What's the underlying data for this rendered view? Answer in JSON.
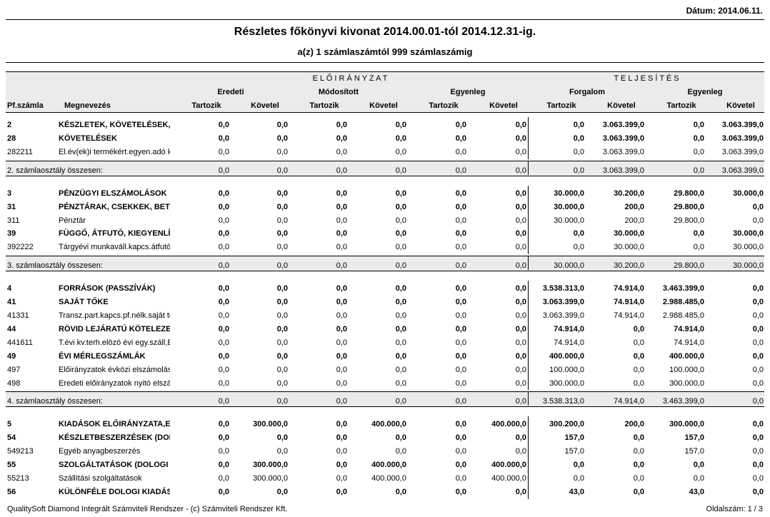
{
  "date": "Dátum: 2014.06.11.",
  "title": "Részletes főkönyvi kivonat 2014.00.01-tól 2014.12.31-ig.",
  "subtitle": "a(z) 1 számlaszámtól 999 számlaszámig",
  "columns": {
    "group1": "E L Ő I R Á N Y Z A T",
    "group2": "T E L J E S Í T É S",
    "subgroups": [
      "Eredeti",
      "Módosított",
      "Egyenleg",
      "Forgalom",
      "Egyenleg"
    ],
    "account": "Pf.számla",
    "name": "Megnevezés",
    "sides": [
      "Tartozik",
      "Követel",
      "Tartozik",
      "Követel",
      "Tartozik",
      "Követel",
      "Tartozik",
      "Követel",
      "Tartozik",
      "Követel"
    ]
  },
  "sections": [
    {
      "rows": [
        {
          "account": "2",
          "name": "KÉSZLETEK, KÖVETELÉSEK, I",
          "values": [
            "0,0",
            "0,0",
            "0,0",
            "0,0",
            "0,0",
            "0,0",
            "0,0",
            "3.063.399,0",
            "0,0",
            "3.063.399,0"
          ]
        },
        {
          "account": "28",
          "name": "KÖVETELÉSEK",
          "values": [
            "0,0",
            "0,0",
            "0,0",
            "0,0",
            "0,0",
            "0,0",
            "0,0",
            "3.063.399,0",
            "0,0",
            "3.063.399,0"
          ]
        },
        {
          "account": "282211",
          "name": "El.év(ek)i termékért.egyen.adó ki",
          "values": [
            "0,0",
            "0,0",
            "0,0",
            "0,0",
            "0,0",
            "0,0",
            "0,0",
            "3.063.399,0",
            "0,0",
            "3.063.399,0"
          ]
        }
      ],
      "total": {
        "label": "2. számlaosztály összesen:",
        "values": [
          "0,0",
          "0,0",
          "0,0",
          "0,0",
          "0,0",
          "0,0",
          "0,0",
          "3.063.399,0",
          "0,0",
          "3.063.399,0"
        ]
      }
    },
    {
      "rows": [
        {
          "account": "3",
          "name": "PÉNZÜGYI ELSZÁMOLÁSOK",
          "values": [
            "0,0",
            "0,0",
            "0,0",
            "0,0",
            "0,0",
            "0,0",
            "30.000,0",
            "30.200,0",
            "29.800,0",
            "30.000,0"
          ]
        },
        {
          "account": "31",
          "name": "PÉNZTÁRAK, CSEKKEK, BETÉ",
          "values": [
            "0,0",
            "0,0",
            "0,0",
            "0,0",
            "0,0",
            "0,0",
            "30.000,0",
            "200,0",
            "29.800,0",
            "0,0"
          ]
        },
        {
          "account": "311",
          "name": "Pénztár",
          "values": [
            "0,0",
            "0,0",
            "0,0",
            "0,0",
            "0,0",
            "0,0",
            "30.000,0",
            "200,0",
            "29.800,0",
            "0,0"
          ]
        },
        {
          "account": "39",
          "name": "FÜGGŐ, ÁTFUTÓ, KIEGYENLÍT",
          "values": [
            "0,0",
            "0,0",
            "0,0",
            "0,0",
            "0,0",
            "0,0",
            "0,0",
            "30.000,0",
            "0,0",
            "30.000,0"
          ]
        },
        {
          "account": "392222",
          "name": "Tárgyévi munkaváll.kapcs.átfutó",
          "values": [
            "0,0",
            "0,0",
            "0,0",
            "0,0",
            "0,0",
            "0,0",
            "0,0",
            "30.000,0",
            "0,0",
            "30.000,0"
          ]
        }
      ],
      "total": {
        "label": "3. számlaosztály összesen:",
        "values": [
          "0,0",
          "0,0",
          "0,0",
          "0,0",
          "0,0",
          "0,0",
          "30.000,0",
          "30.200,0",
          "29.800,0",
          "30.000,0"
        ]
      }
    },
    {
      "rows": [
        {
          "account": "4",
          "name": "FORRÁSOK (PASSZÍVÁK)",
          "values": [
            "0,0",
            "0,0",
            "0,0",
            "0,0",
            "0,0",
            "0,0",
            "3.538.313,0",
            "74.914,0",
            "3.463.399,0",
            "0,0"
          ]
        },
        {
          "account": "41",
          "name": "SAJÁT TŐKE",
          "values": [
            "0,0",
            "0,0",
            "0,0",
            "0,0",
            "0,0",
            "0,0",
            "3.063.399,0",
            "74.914,0",
            "2.988.485,0",
            "0,0"
          ]
        },
        {
          "account": "41331",
          "name": "Transz.part.kapcs.pf.nélk.saját tő",
          "values": [
            "0,0",
            "0,0",
            "0,0",
            "0,0",
            "0,0",
            "0,0",
            "3.063.399,0",
            "74.914,0",
            "2.988.485,0",
            "0,0"
          ]
        },
        {
          "account": "44",
          "name": "RÖVID LEJÁRATÚ KÖTELEZET",
          "values": [
            "0,0",
            "0,0",
            "0,0",
            "0,0",
            "0,0",
            "0,0",
            "74.914,0",
            "0,0",
            "74.914,0",
            "0,0"
          ]
        },
        {
          "account": "441611",
          "name": "T.évi kv.terh.elözö évi egy.száll,E",
          "values": [
            "0,0",
            "0,0",
            "0,0",
            "0,0",
            "0,0",
            "0,0",
            "74.914,0",
            "0,0",
            "74.914,0",
            "0,0"
          ]
        },
        {
          "account": "49",
          "name": "ÉVI MÉRLEGSZÁMLÁK",
          "values": [
            "0,0",
            "0,0",
            "0,0",
            "0,0",
            "0,0",
            "0,0",
            "400.000,0",
            "0,0",
            "400.000,0",
            "0,0"
          ]
        },
        {
          "account": "497",
          "name": "Előirányzatok évközi elszámolás",
          "values": [
            "0,0",
            "0,0",
            "0,0",
            "0,0",
            "0,0",
            "0,0",
            "100.000,0",
            "0,0",
            "100.000,0",
            "0,0"
          ]
        },
        {
          "account": "498",
          "name": "Eredeti előirányzatok nyitó elszám",
          "values": [
            "0,0",
            "0,0",
            "0,0",
            "0,0",
            "0,0",
            "0,0",
            "300.000,0",
            "0,0",
            "300.000,0",
            "0,0"
          ]
        }
      ],
      "total": {
        "label": "4. számlaosztály összesen:",
        "values": [
          "0,0",
          "0,0",
          "0,0",
          "0,0",
          "0,0",
          "0,0",
          "3.538.313,0",
          "74.914,0",
          "3.463.399,0",
          "0,0"
        ]
      }
    },
    {
      "rows": [
        {
          "account": "5",
          "name": "KIADÁSOK ELŐIRÁNYZATA,EL",
          "values": [
            "0,0",
            "300.000,0",
            "0,0",
            "400.000,0",
            "0,0",
            "400.000,0",
            "300.200,0",
            "200,0",
            "300.000,0",
            "0,0"
          ]
        },
        {
          "account": "54",
          "name": "KÉSZLETBESZERZÉSEK (DOL",
          "values": [
            "0,0",
            "0,0",
            "0,0",
            "0,0",
            "0,0",
            "0,0",
            "157,0",
            "0,0",
            "157,0",
            "0,0"
          ]
        },
        {
          "account": "549213",
          "name": "Egyéb anyagbeszerzés",
          "values": [
            "0,0",
            "0,0",
            "0,0",
            "0,0",
            "0,0",
            "0,0",
            "157,0",
            "0,0",
            "157,0",
            "0,0"
          ]
        },
        {
          "account": "55",
          "name": "SZOLGÁLTATÁSOK (DOLOGI",
          "values": [
            "0,0",
            "300.000,0",
            "0,0",
            "400.000,0",
            "0,0",
            "400.000,0",
            "0,0",
            "0,0",
            "0,0",
            "0,0"
          ]
        },
        {
          "account": "55213",
          "name": "Szállítási szolgáltatások",
          "values": [
            "0,0",
            "300.000,0",
            "0,0",
            "400.000,0",
            "0,0",
            "400.000,0",
            "0,0",
            "0,0",
            "0,0",
            "0,0"
          ]
        },
        {
          "account": "56",
          "name": "KÜLÖNFÉLE DOLOGI KIADÁS",
          "values": [
            "0,0",
            "0,0",
            "0,0",
            "0,0",
            "0,0",
            "0,0",
            "43,0",
            "0,0",
            "43,0",
            "0,0"
          ]
        }
      ]
    }
  ],
  "footer": {
    "left": "QualitySoft Diamond Integrált Számviteli Rendszer - (c) Számviteli Rendszer Kft.",
    "right": "Oldalszám: 1 / 3"
  }
}
